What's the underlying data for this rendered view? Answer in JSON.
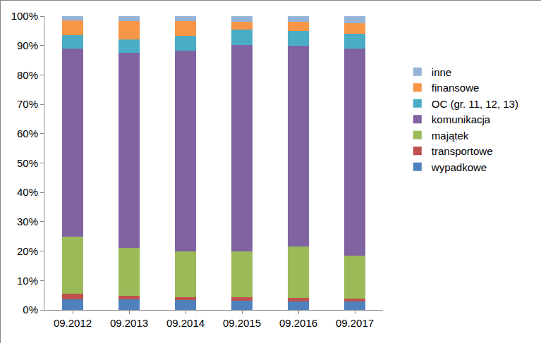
{
  "chart_data": {
    "type": "bar",
    "stacked": true,
    "categories": [
      "09.2012",
      "09.2013",
      "09.2014",
      "09.2015",
      "09.2016",
      "09.2017"
    ],
    "series": [
      {
        "name": "wypadkowe",
        "color": "#4f81bd",
        "values": [
          3.5,
          3.5,
          3.3,
          3.0,
          2.8,
          2.8
        ]
      },
      {
        "name": "transportowe",
        "color": "#c0504d",
        "values": [
          2.0,
          1.2,
          1.0,
          1.2,
          1.2,
          1.0
        ]
      },
      {
        "name": "majątek",
        "color": "#9bbb59",
        "values": [
          19.5,
          16.3,
          15.5,
          15.6,
          17.5,
          14.7
        ]
      },
      {
        "name": "komunikacja",
        "color": "#8064a2",
        "values": [
          64.0,
          66.5,
          68.5,
          70.4,
          68.5,
          70.5
        ]
      },
      {
        "name": "OC (gr. 11, 12, 13)",
        "color": "#4bacc6",
        "values": [
          4.5,
          4.5,
          5.0,
          5.3,
          5.0,
          5.0
        ]
      },
      {
        "name": "finansowe",
        "color": "#f79646",
        "values": [
          5.0,
          6.3,
          5.0,
          2.7,
          3.0,
          3.6
        ]
      },
      {
        "name": "inne",
        "color": "#95b3d7",
        "values": [
          1.5,
          1.7,
          1.7,
          1.8,
          2.0,
          2.4
        ]
      }
    ],
    "ylim": [
      0,
      100
    ],
    "yticks": [
      {
        "value": 0,
        "label": "0%"
      },
      {
        "value": 10,
        "label": "10%"
      },
      {
        "value": 20,
        "label": "20%"
      },
      {
        "value": 30,
        "label": "30%"
      },
      {
        "value": 40,
        "label": "40%"
      },
      {
        "value": 50,
        "label": "50%"
      },
      {
        "value": 60,
        "label": "60%"
      },
      {
        "value": 70,
        "label": "70%"
      },
      {
        "value": 80,
        "label": "80%"
      },
      {
        "value": 90,
        "label": "90%"
      },
      {
        "value": 100,
        "label": "100%"
      }
    ],
    "grid": false,
    "legend": "right"
  }
}
